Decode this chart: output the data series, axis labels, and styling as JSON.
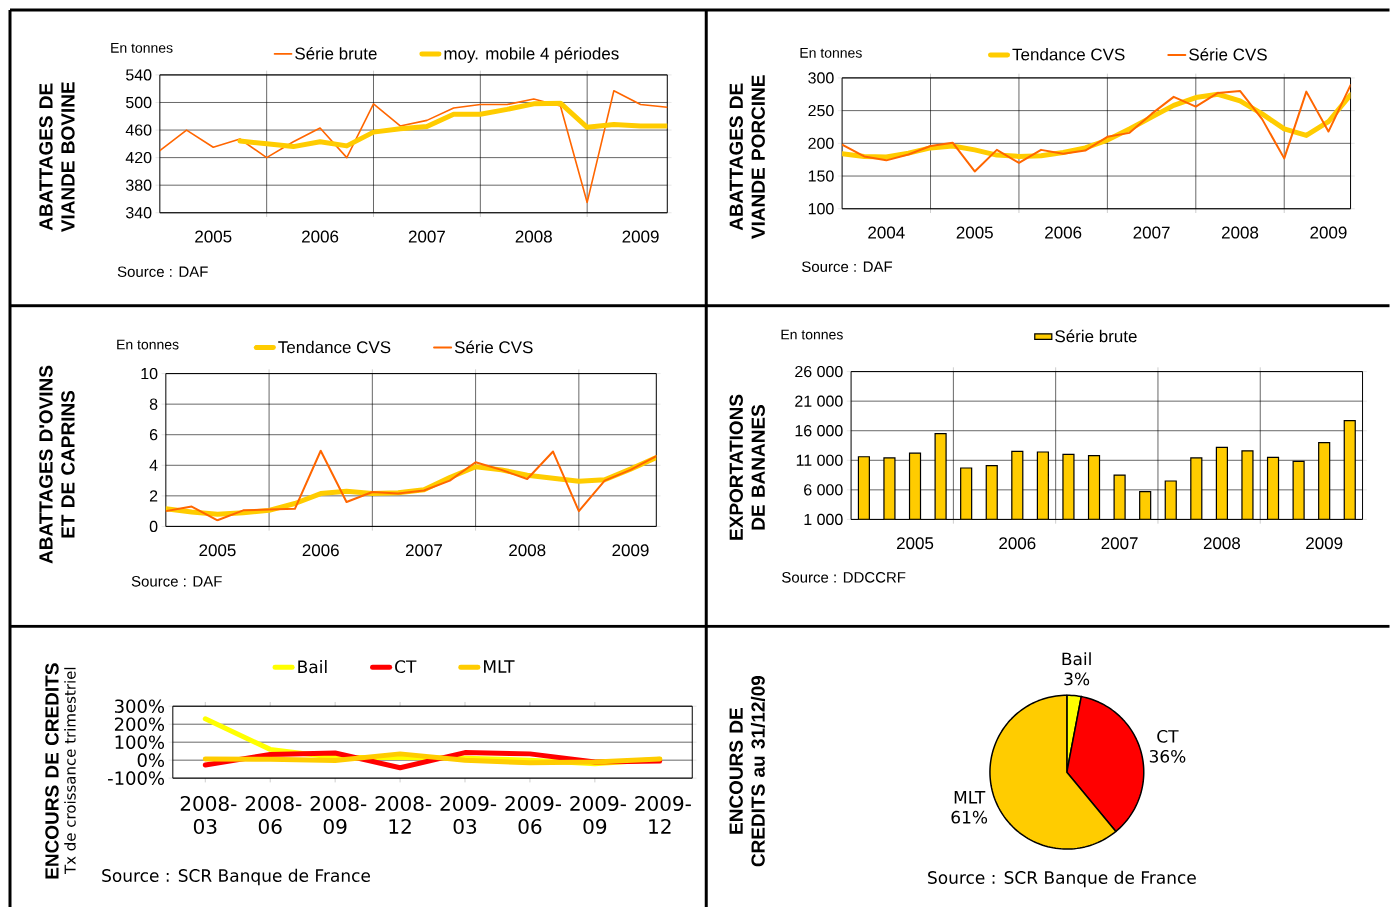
{
  "chart_data": [
    {
      "type": "line",
      "title": "ABATTAGES DE VIANDE BOVINE",
      "annotations": [
        "En tonnes",
        "Source : DAF"
      ],
      "categories": [
        null,
        null,
        "2005",
        null,
        null,
        null,
        "2006",
        null,
        null,
        null,
        "2007",
        null,
        null,
        null,
        "2008",
        null,
        null,
        null,
        "2009",
        null
      ],
      "ylim": [
        340,
        540
      ],
      "yticks": [
        340,
        380,
        420,
        460,
        500,
        540
      ],
      "grid": true,
      "legend": "top",
      "series": [
        {
          "name": "Série brute",
          "color": "#ff6600",
          "values": [
            430,
            460,
            435,
            447,
            420,
            443,
            463,
            420,
            498,
            466,
            474,
            492,
            497,
            497,
            505,
            495,
            355,
            517,
            497,
            493
          ]
        },
        {
          "name": "moy. mobile 4 périodes",
          "color": "#ffcc00",
          "values": [
            null,
            null,
            null,
            444,
            440,
            436,
            443,
            437,
            457,
            462,
            465,
            483,
            483,
            490,
            498,
            499,
            464,
            468,
            466,
            466
          ]
        }
      ]
    },
    {
      "type": "line",
      "title": "ABATTAGES DE VIANDE PORCINE",
      "annotations": [
        "En tonnes",
        "Source : DAF"
      ],
      "categories": [
        null,
        null,
        "2004",
        null,
        null,
        null,
        "2005",
        null,
        null,
        null,
        "2006",
        null,
        null,
        null,
        "2007",
        null,
        null,
        null,
        "2008",
        null,
        null,
        null,
        "2009",
        null
      ],
      "ylim": [
        100,
        300
      ],
      "yticks": [
        100,
        150,
        200,
        250,
        300
      ],
      "grid": true,
      "legend": "top",
      "series": [
        {
          "name": "Tendance CVS",
          "color": "#ffcc00",
          "values": [
            184,
            180,
            179,
            185,
            193,
            196,
            190,
            182,
            180,
            181,
            186,
            193,
            205,
            222,
            240,
            258,
            270,
            275,
            265,
            245,
            222,
            212,
            233,
            274
          ]
        },
        {
          "name": "Série CVS",
          "color": "#ff6600",
          "values": [
            198,
            180,
            174,
            183,
            196,
            201,
            157,
            190,
            170,
            190,
            184,
            189,
            210,
            216,
            245,
            271,
            256,
            277,
            280,
            237,
            177,
            279,
            218,
            289
          ]
        }
      ]
    },
    {
      "type": "line",
      "title": "ABATTAGES D'OVINS ET DE CAPRINS",
      "annotations": [
        "En tonnes",
        "Source : DAF"
      ],
      "categories": [
        null,
        null,
        "2005",
        null,
        null,
        null,
        "2006",
        null,
        null,
        null,
        "2007",
        null,
        null,
        null,
        "2008",
        null,
        null,
        null,
        "2009",
        null
      ],
      "ylim": [
        0,
        10
      ],
      "yticks": [
        0,
        2,
        4,
        6,
        8,
        10
      ],
      "grid": true,
      "legend": "top",
      "series": [
        {
          "name": "Tendance CVS",
          "color": "#ffcc00",
          "values": [
            1.15,
            0.95,
            0.8,
            0.9,
            1.05,
            1.5,
            2.15,
            2.3,
            2.15,
            2.2,
            2.4,
            3.2,
            3.9,
            3.7,
            3.35,
            3.15,
            2.95,
            3.05,
            3.75,
            4.5
          ]
        },
        {
          "name": "Série CVS",
          "color": "#ff6600",
          "values": [
            1.0,
            1.3,
            0.4,
            1.05,
            1.1,
            1.15,
            4.95,
            1.6,
            2.25,
            2.15,
            2.35,
            3.0,
            4.2,
            3.7,
            3.1,
            4.9,
            1.0,
            3.0,
            3.7,
            4.6
          ]
        }
      ]
    },
    {
      "type": "bar",
      "title": "EXPORTATIONS DE BANANES",
      "annotations": [
        "En tonnes",
        "Source : DDCCRF"
      ],
      "categories": [
        null,
        null,
        "2005",
        null,
        null,
        null,
        "2006",
        null,
        null,
        null,
        "2007",
        null,
        null,
        null,
        "2008",
        null,
        null,
        null,
        "2009",
        null
      ],
      "ylim": [
        1000,
        26000
      ],
      "yticks": [
        {
          "value": 1000,
          "label": "1 000"
        },
        {
          "value": 6000,
          "label": "6 000"
        },
        {
          "value": 11000,
          "label": "11 000"
        },
        {
          "value": 16000,
          "label": "16 000"
        },
        {
          "value": 21000,
          "label": "21 000"
        },
        {
          "value": 26000,
          "label": "26 000"
        }
      ],
      "grid": true,
      "legend": "top",
      "series": [
        {
          "name": "Série brute",
          "color": "#ffcc00",
          "values": [
            11600,
            11400,
            12200,
            15500,
            9700,
            10100,
            12500,
            12400,
            12000,
            11800,
            8500,
            5700,
            7500,
            11400,
            13200,
            12600,
            11500,
            10800,
            14000,
            17700
          ]
        }
      ]
    },
    {
      "type": "line",
      "title": "ENCOURS DE CREDITS",
      "ylabel": "Tx de croissance trimestriel",
      "annotations": [
        "Source : SCR Banque de France"
      ],
      "categories": [
        "2008-03",
        "2008-06",
        "2008-09",
        "2008-12",
        "2009-03",
        "2009-06",
        "2009-09",
        "2009-12"
      ],
      "ylim": [
        -100,
        300
      ],
      "yticks": [
        {
          "value": -100,
          "label": "-100%"
        },
        {
          "value": 0,
          "label": "0%"
        },
        {
          "value": 100,
          "label": "100%"
        },
        {
          "value": 200,
          "label": "200%"
        },
        {
          "value": 300,
          "label": "300%"
        }
      ],
      "grid": "y",
      "legend": "top",
      "series": [
        {
          "name": "Bail",
          "color": "#ffff00",
          "values": [
            230,
            60,
            15,
            15,
            10,
            0,
            -20,
            5
          ]
        },
        {
          "name": "CT",
          "color": "#ff0000",
          "values": [
            -27,
            32,
            40,
            -42,
            42,
            35,
            -10,
            -5
          ]
        },
        {
          "name": "MLT",
          "color": "#ffcc00",
          "values": [
            7,
            5,
            -2,
            35,
            0,
            -15,
            -10,
            7
          ]
        }
      ]
    },
    {
      "type": "pie",
      "title": "ENCOURS DE CREDITS au 31/12/09",
      "annotations": [
        "Source : SCR Banque de France"
      ],
      "categories": [
        "Bail",
        "CT",
        "MLT"
      ],
      "values": [
        3,
        36,
        61
      ],
      "value_labels": [
        "3%",
        "36%",
        "61%"
      ],
      "colors": [
        "#ffff00",
        "#ff0000",
        "#ffcc00"
      ]
    }
  ]
}
